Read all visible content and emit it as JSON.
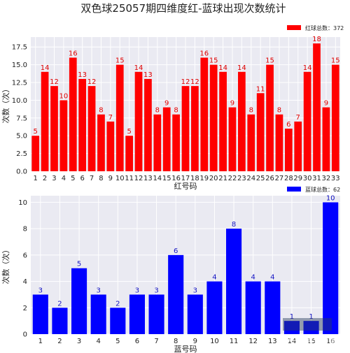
{
  "title": "双色球25057期四维度红-蓝球出现次数统计",
  "watermark": "知乎 @数学故事",
  "chart_data": [
    {
      "type": "bar",
      "xlabel": "红号码",
      "ylabel": "次数（次）",
      "legend": "红球总数：372",
      "legend_position": "top-right",
      "color": "#ff0000",
      "grid": true,
      "ylim": [
        0,
        18.9
      ],
      "yticks": [
        0.0,
        2.5,
        5.0,
        7.5,
        10.0,
        12.5,
        15.0,
        17.5
      ],
      "categories": [
        "1",
        "2",
        "3",
        "4",
        "5",
        "6",
        "7",
        "8",
        "9",
        "10",
        "11",
        "12",
        "13",
        "14",
        "15",
        "16",
        "17",
        "18",
        "19",
        "20",
        "21",
        "22",
        "23",
        "24",
        "25",
        "26",
        "27",
        "28",
        "29",
        "30",
        "31",
        "32",
        "33"
      ],
      "values": [
        5,
        14,
        12,
        10,
        16,
        13,
        12,
        8,
        7,
        15,
        5,
        14,
        13,
        8,
        9,
        8,
        12,
        12,
        16,
        15,
        14,
        9,
        14,
        8,
        11,
        15,
        8,
        6,
        7,
        14,
        18,
        9,
        15
      ]
    },
    {
      "type": "bar",
      "xlabel": "蓝号码",
      "ylabel": "次数（次）",
      "legend": "蓝球总数：62",
      "legend_position": "top-right",
      "color": "#0000ff",
      "grid": true,
      "ylim": [
        0,
        10.5
      ],
      "yticks": [
        0,
        2,
        4,
        6,
        8,
        10
      ],
      "categories": [
        "1",
        "2",
        "3",
        "4",
        "5",
        "6",
        "7",
        "8",
        "9",
        "10",
        "11",
        "12",
        "13",
        "14",
        "15",
        "16"
      ],
      "values": [
        3,
        2,
        5,
        3,
        2,
        3,
        3,
        6,
        3,
        4,
        8,
        4,
        4,
        1,
        1,
        10
      ]
    }
  ]
}
